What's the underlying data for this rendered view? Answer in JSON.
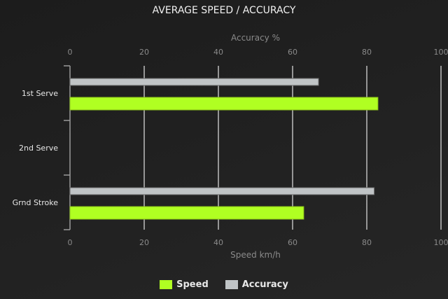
{
  "chart_data": {
    "type": "bar",
    "orientation": "horizontal",
    "title": "AVERAGE SPEED / ACCURACY",
    "categories": [
      "1st Serve",
      "2nd Serve",
      "Grnd Stroke"
    ],
    "series": [
      {
        "name": "Speed",
        "values": [
          83,
          null,
          63
        ],
        "color": "#b0ff22",
        "axis": "bottom"
      },
      {
        "name": "Accuracy",
        "values": [
          67,
          null,
          82
        ],
        "color": "#c0c4c6",
        "axis": "top"
      }
    ],
    "x_top_label": "Accuracy %",
    "x_bottom_label": "Speed km/h",
    "xlim": [
      0,
      100
    ],
    "ticks": [
      "0",
      "20",
      "40",
      "60",
      "80",
      "100"
    ],
    "grid": true,
    "legend_position": "bottom"
  }
}
